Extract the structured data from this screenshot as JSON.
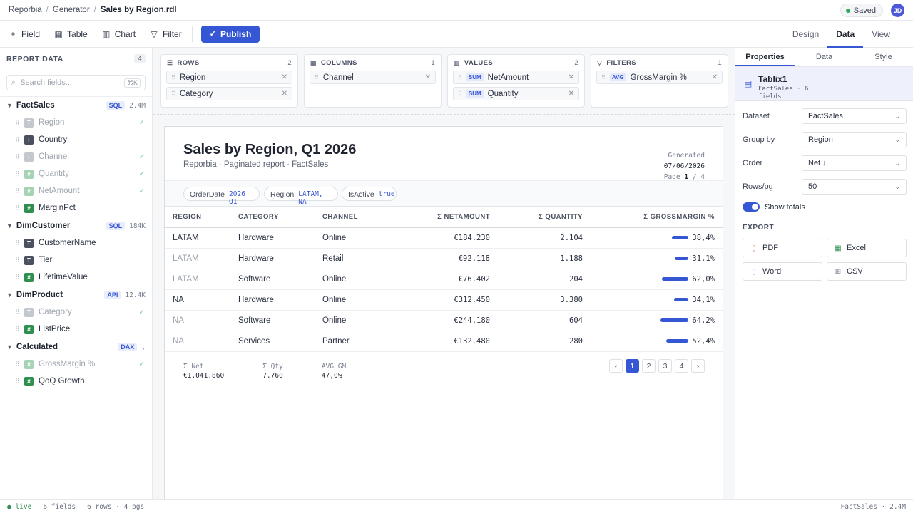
{
  "breadcrumb": [
    "Reporbia",
    "Generator",
    "Sales by Region.rdl"
  ],
  "saved_label": "Saved",
  "user_initials": "JD",
  "toolbar": {
    "field": "Field",
    "table": "Table",
    "chart": "Chart",
    "filter": "Filter",
    "publish": "Publish"
  },
  "modes": [
    "Design",
    "Data",
    "View"
  ],
  "left": {
    "title": "REPORT DATA",
    "count": "4",
    "search_placeholder": "Search fields...",
    "search_kbd": "⌘K",
    "groups": [
      {
        "name": "FactSales",
        "badge": "SQL",
        "size": "2.4M",
        "fields": [
          {
            "label": "Region",
            "type": "T",
            "used": true
          },
          {
            "label": "Country",
            "type": "T",
            "used": false
          },
          {
            "label": "Channel",
            "type": "T",
            "used": true
          },
          {
            "label": "Quantity",
            "type": "#",
            "used": true
          },
          {
            "label": "NetAmount",
            "type": "#",
            "used": true
          },
          {
            "label": "MarginPct",
            "type": "#",
            "used": false
          }
        ]
      },
      {
        "name": "DimCustomer",
        "badge": "SQL",
        "size": "184K",
        "fields": [
          {
            "label": "CustomerName",
            "type": "T",
            "used": false
          },
          {
            "label": "Tier",
            "type": "T",
            "used": false
          },
          {
            "label": "LifetimeValue",
            "type": "#",
            "used": false
          }
        ]
      },
      {
        "name": "DimProduct",
        "badge": "API",
        "size": "12.4K",
        "fields": [
          {
            "label": "Category",
            "type": "T",
            "used": true
          },
          {
            "label": "ListPrice",
            "type": "#",
            "used": false
          }
        ]
      },
      {
        "name": "Calculated",
        "badge": "DAX",
        "size": ",",
        "fields": [
          {
            "label": "GrossMargin %",
            "type": "#",
            "used": true
          },
          {
            "label": "QoQ Growth",
            "type": "#",
            "used": false
          }
        ]
      }
    ]
  },
  "wells": {
    "rows": {
      "title": "ROWS",
      "count": "2",
      "items": [
        "Region",
        "Category"
      ]
    },
    "columns": {
      "title": "COLUMNS",
      "count": "1",
      "items": [
        "Channel"
      ]
    },
    "values": {
      "title": "VALUES",
      "count": "2",
      "items": [
        {
          "agg": "SUM",
          "label": "NetAmount"
        },
        {
          "agg": "SUM",
          "label": "Quantity"
        }
      ]
    },
    "filters": {
      "title": "FILTERS",
      "count": "1",
      "items": [
        {
          "agg": "AVG",
          "label": "GrossMargin %"
        }
      ]
    }
  },
  "report": {
    "title": "Sales by Region, Q1 2026",
    "subtitle": "Reporbia · Paginated report · FactSales",
    "generated_label": "Generated",
    "generated_date": "07/06/2026",
    "page_label": "Page",
    "page_current": "1",
    "page_total": "/ 4",
    "params": [
      {
        "label": "OrderDate",
        "value": "2026 Q1"
      },
      {
        "label": "Region",
        "value": "LATAM, NA"
      },
      {
        "label": "IsActive",
        "value": "true"
      }
    ],
    "columns": [
      "REGION",
      "CATEGORY",
      "CHANNEL",
      "Σ NETAMOUNT",
      "Σ QUANTITY",
      "Σ GROSSMARGIN %"
    ],
    "rows": [
      {
        "region": "LATAM",
        "category": "Hardware",
        "channel": "Online",
        "net": "€184.230",
        "qty": "2.104",
        "gm": "38,4%",
        "gm_value": 38.4,
        "dim": false
      },
      {
        "region": "LATAM",
        "category": "Hardware",
        "channel": "Retail",
        "net": "€92.118",
        "qty": "1.188",
        "gm": "31,1%",
        "gm_value": 31.1,
        "dim": true
      },
      {
        "region": "LATAM",
        "category": "Software",
        "channel": "Online",
        "net": "€76.402",
        "qty": "204",
        "gm": "62,0%",
        "gm_value": 62.0,
        "dim": true
      },
      {
        "region": "NA",
        "category": "Hardware",
        "channel": "Online",
        "net": "€312.450",
        "qty": "3.380",
        "gm": "34,1%",
        "gm_value": 34.1,
        "dim": false
      },
      {
        "region": "NA",
        "category": "Software",
        "channel": "Online",
        "net": "€244.180",
        "qty": "604",
        "gm": "64,2%",
        "gm_value": 64.2,
        "dim": true
      },
      {
        "region": "NA",
        "category": "Services",
        "channel": "Partner",
        "net": "€132.480",
        "qty": "280",
        "gm": "52,4%",
        "gm_value": 52.4,
        "dim": true
      }
    ],
    "totals": [
      {
        "label": "Σ Net",
        "value": "€1.041.860"
      },
      {
        "label": "Σ Qty",
        "value": "7.760"
      },
      {
        "label": "AVG GM",
        "value": "47,0%"
      }
    ],
    "pager": [
      "‹",
      "1",
      "2",
      "3",
      "4",
      "›"
    ],
    "pager_active": "1"
  },
  "right": {
    "tabs": [
      "Properties",
      "Data",
      "Style"
    ],
    "object_name": "Tablix1",
    "object_meta": "FactSales · 6 fields",
    "props": [
      {
        "label": "Dataset",
        "value": "FactSales"
      },
      {
        "label": "Group by",
        "value": "Region"
      },
      {
        "label": "Order",
        "value": "Net ↓"
      },
      {
        "label": "Rows/pg",
        "value": "50"
      }
    ],
    "show_totals": "Show totals",
    "export_title": "EXPORT",
    "exports": [
      {
        "label": "PDF",
        "color": "#d9534f"
      },
      {
        "label": "Excel",
        "color": "#2f8f4e"
      },
      {
        "label": "Word",
        "color": "#3657d4"
      },
      {
        "label": "CSV",
        "color": "#6a7080"
      }
    ]
  },
  "status": {
    "live": "● live",
    "fields": "6 fields",
    "rows": "6 rows · 4 pgs",
    "right": "FactSales · 2.4M"
  },
  "colors": {
    "accent": "#3657d4",
    "success": "#2f8f4e"
  }
}
